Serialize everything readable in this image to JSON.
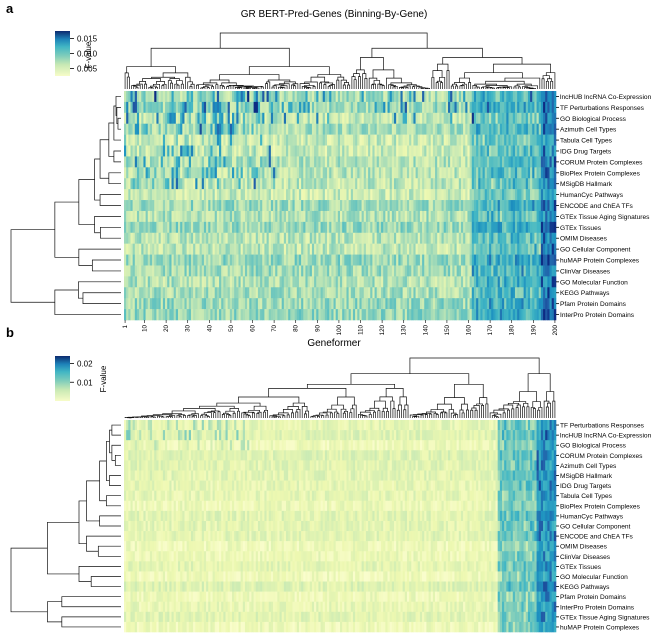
{
  "panels": [
    {
      "label": "a",
      "title": "GR BERT-Pred-Genes (Binning-By-Gene)",
      "colorbar": {
        "label": "F-value",
        "ticks": [
          "0.015",
          "0.010",
          "0.005"
        ],
        "tick_values": [
          0.015,
          0.01,
          0.005
        ],
        "vmin": 0.0025,
        "vmax": 0.0175
      },
      "x_ticks": [
        "1",
        "10",
        "20",
        "30",
        "40",
        "50",
        "60",
        "70",
        "80",
        "90",
        "100",
        "110",
        "120",
        "130",
        "140",
        "150",
        "160",
        "170",
        "180",
        "190",
        "200"
      ],
      "x_tick_values": [
        1,
        10,
        20,
        30,
        40,
        50,
        60,
        70,
        80,
        90,
        100,
        110,
        120,
        130,
        140,
        150,
        160,
        170,
        180,
        190,
        200
      ],
      "n_columns": 200,
      "rows": [
        "lncHUB lncRNA Co-Expression",
        "TF Perturbations Responses",
        "GO Biological Process",
        "Azimuth Cell Types",
        "Tabula Cell Types",
        "IDG Drug Targets",
        "CORUM Protein Complexes",
        "BioPlex Protein Complexes",
        "MSigDB Hallmark",
        "HumanCyc Pathways",
        "ENCODE and ChEA TFs",
        "GTEx Tissue Aging Signatures",
        "GTEx Tissues",
        "OMIM Diseases",
        "GO Cellular Component",
        "huMAP Protein Complexes",
        "ClinVar Diseases",
        "GO Molecular Function",
        "KEGG Pathways",
        "Pfam Protein Domains",
        "InterPro Protein Domains"
      ]
    },
    {
      "label": "b",
      "title": "Geneformer",
      "colorbar": {
        "label": "F-value",
        "ticks": [
          "0.02",
          "0.01"
        ],
        "tick_values": [
          0.02,
          0.01
        ],
        "vmin": 0.0,
        "vmax": 0.024
      },
      "x_ticks": [],
      "x_tick_values": [],
      "n_columns": 200,
      "rows": [
        "TF Perturbations Responses",
        "lncHUB lncRNA Co-Expression",
        "GO Biological Process",
        "CORUM Protein Complexes",
        "Azimuth Cell Types",
        "MSigDB Hallmark",
        "IDG Drug Targets",
        "Tabula Cell Types",
        "BioPlex Protein Complexes",
        "HumanCyc Pathways",
        "GO Cellular Component",
        "ENCODE and ChEA TFs",
        "OMIM Diseases",
        "ClinVar Diseases",
        "GTEx Tissues",
        "GO Molecular Function",
        "KEGG Pathways",
        "Pfam Protein Domains",
        "InterPro Protein Domains",
        "GTEx Tissue Aging Signatures",
        "huMAP Protein Complexes"
      ]
    }
  ],
  "chart_data": [
    {
      "type": "heatmap",
      "title": "GR BERT-Pred-Genes (Binning-By-Gene)",
      "colorbar_label": "F-value",
      "colorbar_ticks": [
        0.015,
        0.01,
        0.005
      ],
      "x_ticks": [
        1,
        10,
        20,
        30,
        40,
        50,
        60,
        70,
        80,
        90,
        100,
        110,
        120,
        130,
        140,
        150,
        160,
        170,
        180,
        190,
        200
      ],
      "rows": [
        "lncHUB lncRNA Co-Expression",
        "TF Perturbations Responses",
        "GO Biological Process",
        "Azimuth Cell Types",
        "Tabula Cell Types",
        "IDG Drug Targets",
        "CORUM Protein Complexes",
        "BioPlex Protein Complexes",
        "MSigDB Hallmark",
        "HumanCyc Pathways",
        "ENCODE and ChEA TFs",
        "GTEx Tissue Aging Signatures",
        "GTEx Tissues",
        "OMIM Diseases",
        "GO Cellular Component",
        "huMAP Protein Complexes",
        "ClinVar Diseases",
        "GO Molecular Function",
        "KEGG Pathways",
        "Pfam Protein Domains",
        "InterPro Protein Domains"
      ],
      "dendrograms": "row and column"
    },
    {
      "type": "heatmap",
      "title": "Geneformer",
      "colorbar_label": "F-value",
      "colorbar_ticks": [
        0.02,
        0.01
      ],
      "rows": [
        "TF Perturbations Responses",
        "lncHUB lncRNA Co-Expression",
        "GO Biological Process",
        "CORUM Protein Complexes",
        "Azimuth Cell Types",
        "MSigDB Hallmark",
        "IDG Drug Targets",
        "Tabula Cell Types",
        "BioPlex Protein Complexes",
        "HumanCyc Pathways",
        "GO Cellular Component",
        "ENCODE and ChEA TFs",
        "OMIM Diseases",
        "ClinVar Diseases",
        "GTEx Tissues",
        "GO Molecular Function",
        "KEGG Pathways",
        "Pfam Protein Domains",
        "InterPro Protein Domains",
        "GTEx Tissue Aging Signatures",
        "huMAP Protein Complexes"
      ],
      "dendrograms": "row and column"
    }
  ]
}
